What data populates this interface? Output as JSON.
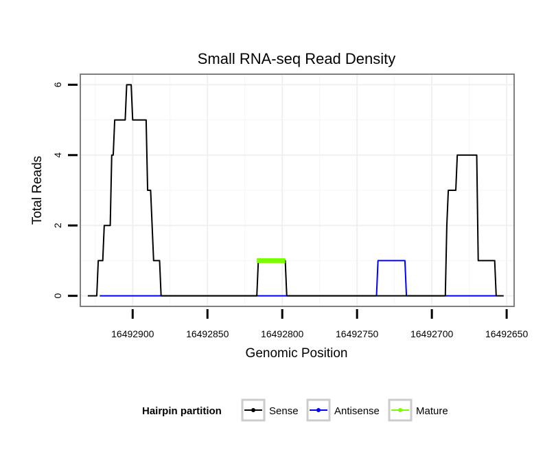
{
  "chart_data": {
    "type": "line",
    "title": "Small RNA-seq Read Density",
    "xlabel": "Genomic Position",
    "ylabel": "Total Reads",
    "xlim": [
      16492935,
      16492645
    ],
    "ylim": [
      -0.3,
      6.3
    ],
    "x_reversed": true,
    "xticks": [
      16492900,
      16492850,
      16492800,
      16492750,
      16492700,
      16492650
    ],
    "xtick_labels": [
      "16492900",
      "16492850",
      "16492800",
      "16492750",
      "16492700",
      "16492650"
    ],
    "yticks": [
      0,
      2,
      4,
      6
    ],
    "ytick_labels": [
      "0",
      "2",
      "4",
      "6"
    ],
    "grid": true,
    "legend": {
      "title": "Hairpin partition",
      "position": "bottom",
      "entries": [
        "Sense",
        "Antisense",
        "Mature"
      ]
    },
    "series": [
      {
        "name": "Sense",
        "color": "#000000",
        "points": [
          [
            16492930,
            0
          ],
          [
            16492924,
            0
          ],
          [
            16492923,
            1
          ],
          [
            16492920,
            1
          ],
          [
            16492919,
            2
          ],
          [
            16492915,
            2
          ],
          [
            16492914,
            4
          ],
          [
            16492913,
            4
          ],
          [
            16492912,
            5
          ],
          [
            16492905,
            5
          ],
          [
            16492904,
            6
          ],
          [
            16492901,
            6
          ],
          [
            16492900,
            5
          ],
          [
            16492891,
            5
          ],
          [
            16492890,
            3
          ],
          [
            16492888,
            3
          ],
          [
            16492887,
            2
          ],
          [
            16492886,
            1
          ],
          [
            16492882,
            1
          ],
          [
            16492881,
            0
          ],
          [
            16492817,
            0
          ],
          [
            16492816,
            1
          ],
          [
            16492798,
            1
          ],
          [
            16492797,
            0
          ],
          [
            16492691,
            0
          ],
          [
            16492690,
            2
          ],
          [
            16492689,
            3
          ],
          [
            16492684,
            3
          ],
          [
            16492683,
            4
          ],
          [
            16492670,
            4
          ],
          [
            16492669,
            1
          ],
          [
            16492658,
            1
          ],
          [
            16492657,
            0
          ],
          [
            16492652,
            0
          ]
        ]
      },
      {
        "name": "Antisense",
        "color": "#0000ff",
        "points": [
          [
            16492922,
            0
          ],
          [
            16492881,
            0
          ],
          [
            16492817,
            0
          ],
          [
            16492797,
            0
          ],
          [
            16492737,
            0
          ],
          [
            16492736,
            1
          ],
          [
            16492718,
            1
          ],
          [
            16492717,
            0
          ],
          [
            16492691,
            0
          ],
          [
            16492657,
            0
          ]
        ]
      },
      {
        "name": "Mature",
        "color": "#7cfc00",
        "points": [
          [
            16492817,
            1
          ],
          [
            16492798,
            1
          ]
        ]
      }
    ]
  }
}
